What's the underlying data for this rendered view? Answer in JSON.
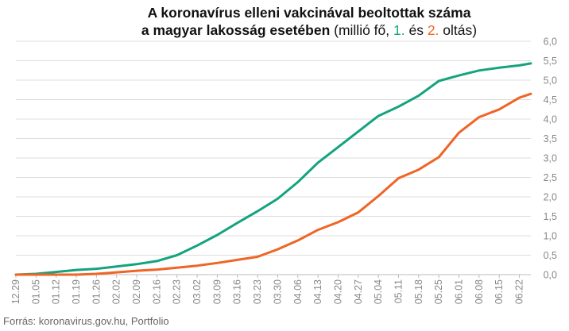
{
  "title": {
    "line1": "A koronavírus elleni vakcinával beoltottak száma",
    "line2_bold": "a magyar lakosság esetében",
    "line2_prefix": " (millió fő, ",
    "line2_s1": "1.",
    "line2_mid": " és ",
    "line2_s2": "2.",
    "line2_suffix": " oltás)"
  },
  "source": "Forrás: koronavirus.gov.hu, Portfolio",
  "colors": {
    "first_dose": "#14a37f",
    "second_dose": "#f06424",
    "grid": "#dddddd",
    "axis_text": "#888888"
  },
  "chart_data": {
    "type": "line",
    "title": "A koronavírus elleni vakcinával beoltottak száma a magyar lakosság esetében (millió fő, 1. és 2. oltás)",
    "xlabel": "",
    "ylabel": "",
    "ylim": [
      0,
      6
    ],
    "yticks": [
      "0,0",
      "0,5",
      "1,0",
      "1,5",
      "2,0",
      "2,5",
      "3,0",
      "3,5",
      "4,0",
      "4,5",
      "5,0",
      "5,5",
      "6,0"
    ],
    "y_axis_side": "right",
    "grid": "horizontal",
    "xticks": [
      "12.29",
      "01.05",
      "01.12",
      "01.19",
      "01.26",
      "02.02",
      "02.09",
      "02.16",
      "02.23",
      "03.02",
      "03.09",
      "03.16",
      "03.23",
      "03.30",
      "04.06",
      "04.13",
      "04.20",
      "04.27",
      "05.04",
      "05.11",
      "05.18",
      "05.25",
      "06.01",
      "06.08",
      "06.15",
      "06.22"
    ],
    "series": [
      {
        "name": "1.",
        "color": "#14a37f",
        "points": [
          [
            "12.29",
            0.0
          ],
          [
            "01.05",
            0.02
          ],
          [
            "01.12",
            0.07
          ],
          [
            "01.19",
            0.12
          ],
          [
            "01.26",
            0.15
          ],
          [
            "02.02",
            0.21
          ],
          [
            "02.09",
            0.27
          ],
          [
            "02.16",
            0.35
          ],
          [
            "02.23",
            0.5
          ],
          [
            "03.02",
            0.75
          ],
          [
            "03.09",
            1.02
          ],
          [
            "03.16",
            1.33
          ],
          [
            "03.23",
            1.63
          ],
          [
            "03.30",
            1.95
          ],
          [
            "04.06",
            2.38
          ],
          [
            "04.13",
            2.88
          ],
          [
            "04.20",
            3.28
          ],
          [
            "04.27",
            3.68
          ],
          [
            "05.04",
            4.08
          ],
          [
            "05.11",
            4.32
          ],
          [
            "05.18",
            4.6
          ],
          [
            "05.25",
            4.98
          ],
          [
            "06.01",
            5.12
          ],
          [
            "06.08",
            5.25
          ],
          [
            "06.15",
            5.32
          ],
          [
            "06.22",
            5.38
          ],
          [
            "06.26",
            5.43
          ]
        ]
      },
      {
        "name": "2.",
        "color": "#f06424",
        "points": [
          [
            "12.29",
            0.0
          ],
          [
            "01.05",
            0.0
          ],
          [
            "01.12",
            0.0
          ],
          [
            "01.19",
            0.0
          ],
          [
            "01.26",
            0.02
          ],
          [
            "02.02",
            0.06
          ],
          [
            "02.09",
            0.1
          ],
          [
            "02.16",
            0.13
          ],
          [
            "02.23",
            0.18
          ],
          [
            "03.02",
            0.23
          ],
          [
            "03.09",
            0.3
          ],
          [
            "03.16",
            0.38
          ],
          [
            "03.23",
            0.46
          ],
          [
            "03.30",
            0.65
          ],
          [
            "04.06",
            0.88
          ],
          [
            "04.13",
            1.15
          ],
          [
            "04.20",
            1.35
          ],
          [
            "04.27",
            1.6
          ],
          [
            "05.04",
            2.02
          ],
          [
            "05.11",
            2.48
          ],
          [
            "05.18",
            2.7
          ],
          [
            "05.25",
            3.02
          ],
          [
            "06.01",
            3.65
          ],
          [
            "06.08",
            4.05
          ],
          [
            "06.15",
            4.25
          ],
          [
            "06.22",
            4.55
          ],
          [
            "06.26",
            4.65
          ]
        ]
      }
    ]
  }
}
